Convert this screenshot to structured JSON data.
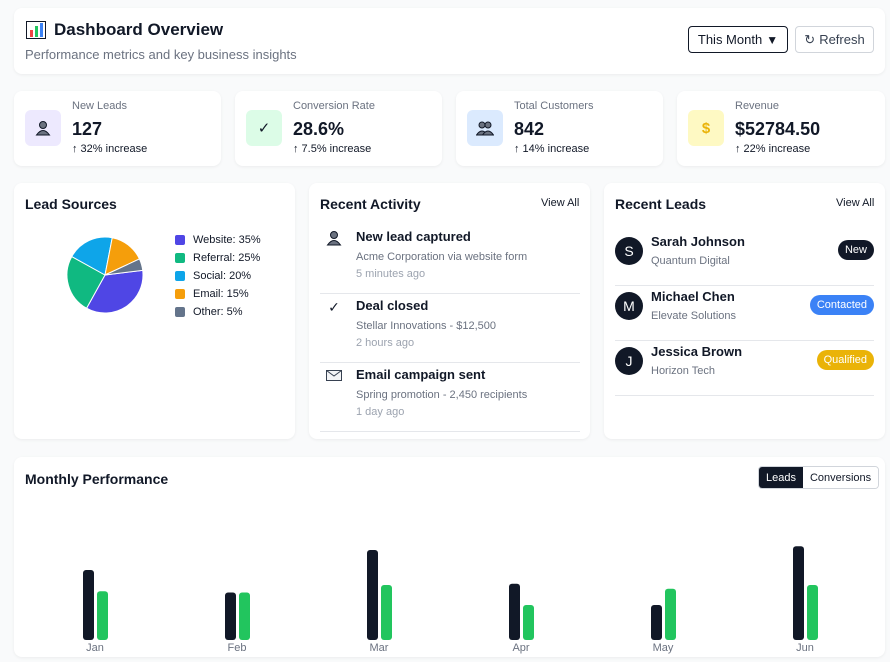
{
  "header": {
    "title": "Dashboard Overview",
    "subtitle": "Performance metrics and key business insights",
    "period_label": "This Month",
    "refresh_label": "Refresh"
  },
  "stats": [
    {
      "label": "New Leads",
      "value": "127",
      "change": "↑ 32% increase",
      "icon": "user-icon",
      "color": "#ede9fe"
    },
    {
      "label": "Conversion Rate",
      "value": "28.6%",
      "change": "↑ 7.5% increase",
      "icon": "check-icon",
      "color": "#dcfce7"
    },
    {
      "label": "Total Customers",
      "value": "842",
      "change": "↑ 14% increase",
      "icon": "users-icon",
      "color": "#dbeafe"
    },
    {
      "label": "Revenue",
      "value": "$52784.50",
      "change": "↑ 22% increase",
      "icon": "dollar-icon",
      "color": "#fef9c3"
    }
  ],
  "lead_sources": {
    "title": "Lead Sources",
    "legend": [
      {
        "label": "Website: 35%",
        "value": 35,
        "color": "#4f46e5"
      },
      {
        "label": "Referral: 25%",
        "value": 25,
        "color": "#10b981"
      },
      {
        "label": "Social: 20%",
        "value": 20,
        "color": "#0ea5e9"
      },
      {
        "label": "Email: 15%",
        "value": 15,
        "color": "#f59e0b"
      },
      {
        "label": "Other: 5%",
        "value": 5,
        "color": "#64748b"
      }
    ]
  },
  "recent_activity": {
    "title": "Recent Activity",
    "view_all": "View All",
    "items": [
      {
        "title": "New lead captured",
        "desc": "Acme Corporation via website form",
        "time": "5 minutes ago",
        "icon": "user-icon"
      },
      {
        "title": "Deal closed",
        "desc": "Stellar Innovations - $12,500",
        "time": "2 hours ago",
        "icon": "check-icon"
      },
      {
        "title": "Email campaign sent",
        "desc": "Spring promotion - 2,450 recipients",
        "time": "1 day ago",
        "icon": "mail-icon"
      }
    ]
  },
  "recent_leads": {
    "title": "Recent Leads",
    "view_all": "View All",
    "items": [
      {
        "initial": "S",
        "name": "Sarah Johnson",
        "company": "Quantum Digital",
        "status": "New",
        "status_color": "#111827"
      },
      {
        "initial": "M",
        "name": "Michael Chen",
        "company": "Elevate Solutions",
        "status": "Contacted",
        "status_color": "#3b82f6"
      },
      {
        "initial": "J",
        "name": "Jessica Brown",
        "company": "Horizon Tech",
        "status": "Qualified",
        "status_color": "#eab308"
      }
    ]
  },
  "performance": {
    "title": "Monthly Performance",
    "toggle_leads": "Leads",
    "toggle_conversions": "Conversions"
  },
  "chart_data": {
    "type": "bar",
    "title": "Monthly Performance",
    "categories": [
      "Jan",
      "Feb",
      "Mar",
      "Apr",
      "May",
      "Jun"
    ],
    "series": [
      {
        "name": "Leads",
        "color": "#111827",
        "values": [
          56,
          38,
          72,
          45,
          28,
          75
        ]
      },
      {
        "name": "Conversions",
        "color": "#22c55e",
        "values": [
          39,
          38,
          44,
          28,
          41,
          44
        ]
      }
    ],
    "ylim": [
      0,
      80
    ],
    "xlabel": "",
    "ylabel": ""
  }
}
